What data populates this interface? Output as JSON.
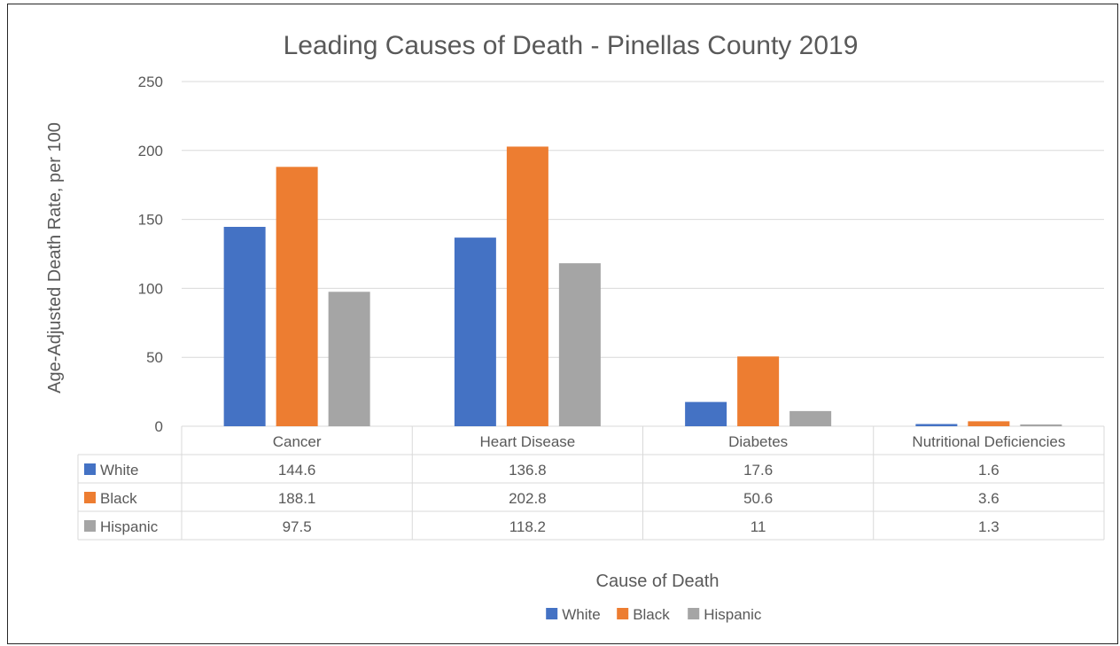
{
  "chart_data": {
    "type": "bar",
    "title": "Leading Causes of Death - Pinellas County 2019",
    "xlabel": "Cause of Death",
    "ylabel": "Age-Adjusted Death Rate, per 100",
    "categories": [
      "Cancer",
      "Heart Disease",
      "Diabetes",
      "Nutritional Deficiencies"
    ],
    "series": [
      {
        "name": "White",
        "color": "#4472C4",
        "values": [
          144.6,
          136.8,
          17.6,
          1.6
        ]
      },
      {
        "name": "Black",
        "color": "#ED7D31",
        "values": [
          188.1,
          202.8,
          50.6,
          3.6
        ]
      },
      {
        "name": "Hispanic",
        "color": "#A5A5A5",
        "values": [
          97.5,
          118.2,
          11,
          1.3
        ]
      }
    ],
    "yticks": [
      0,
      50,
      100,
      150,
      200,
      250
    ],
    "ylim": [
      0,
      250
    ],
    "grid": true,
    "data_table": true,
    "legend_position": "bottom"
  }
}
